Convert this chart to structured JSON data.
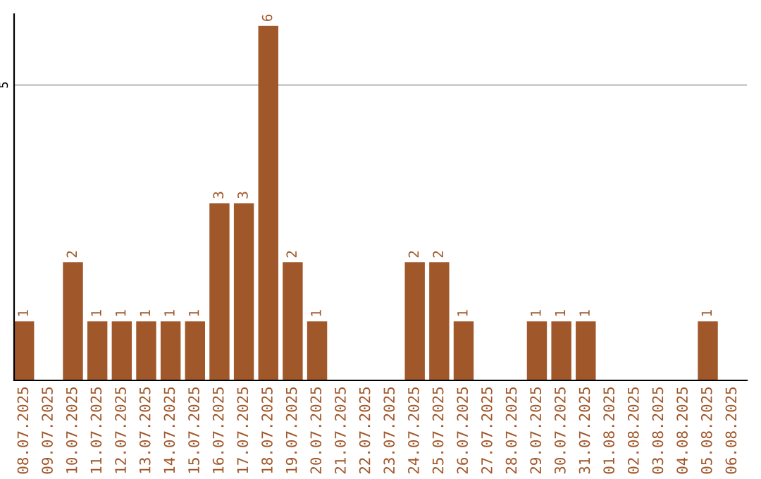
{
  "chart_data": {
    "type": "bar",
    "categories": [
      "08.07.2025",
      "09.07.2025",
      "10.07.2025",
      "11.07.2025",
      "12.07.2025",
      "13.07.2025",
      "14.07.2025",
      "15.07.2025",
      "16.07.2025",
      "17.07.2025",
      "18.07.2025",
      "19.07.2025",
      "20.07.2025",
      "21.07.2025",
      "22.07.2025",
      "23.07.2025",
      "24.07.2025",
      "25.07.2025",
      "26.07.2025",
      "27.07.2025",
      "28.07.2025",
      "29.07.2025",
      "30.07.2025",
      "31.07.2025",
      "01.08.2025",
      "02.08.2025",
      "03.08.2025",
      "04.08.2025",
      "05.08.2025",
      "06.08.2025"
    ],
    "values": [
      1,
      0,
      2,
      1,
      1,
      1,
      1,
      1,
      3,
      3,
      6,
      2,
      1,
      0,
      0,
      0,
      2,
      2,
      1,
      0,
      0,
      1,
      1,
      1,
      0,
      0,
      0,
      0,
      1,
      0
    ],
    "value_labels": [
      "1",
      null,
      "2",
      "1",
      "1",
      "1",
      "1",
      "1",
      "3",
      "3",
      "6",
      "2",
      "1",
      null,
      null,
      null,
      "2",
      "2",
      "1",
      null,
      null,
      "1",
      "1",
      "1",
      null,
      null,
      null,
      null,
      "1",
      null
    ],
    "color": "#a0572a",
    "ylim": [
      0,
      6.2
    ],
    "yticks": [
      5
    ],
    "grid": "y"
  }
}
